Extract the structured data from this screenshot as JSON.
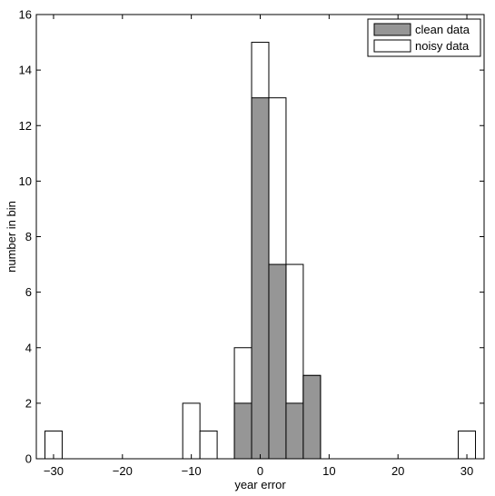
{
  "chart_data": {
    "type": "bar",
    "xlabel": "year error",
    "ylabel": "number in bin",
    "xlim": [
      -32.5,
      32.5
    ],
    "ylim": [
      0,
      16
    ],
    "bin_width": 2.5,
    "xticks": [
      -30,
      -20,
      -10,
      0,
      10,
      20,
      30
    ],
    "xtick_labels": [
      "−30",
      "−20",
      "−10",
      "0",
      "10",
      "20",
      "30"
    ],
    "yticks": [
      0,
      2,
      4,
      6,
      8,
      10,
      12,
      14,
      16
    ],
    "ytick_labels": [
      "0",
      "2",
      "4",
      "6",
      "8",
      "10",
      "12",
      "14",
      "16"
    ],
    "legend_position": "top-right",
    "series": [
      {
        "name": "clean data",
        "color": "#969696",
        "points": [
          {
            "x": -2.5,
            "y": 2
          },
          {
            "x": 0,
            "y": 13
          },
          {
            "x": 2.5,
            "y": 7
          },
          {
            "x": 5,
            "y": 2
          },
          {
            "x": 7.5,
            "y": 3
          }
        ]
      },
      {
        "name": "noisy data",
        "color": "#ffffff",
        "points": [
          {
            "x": -30,
            "y": 1
          },
          {
            "x": -10,
            "y": 2
          },
          {
            "x": -7.5,
            "y": 1
          },
          {
            "x": -2.5,
            "y": 4
          },
          {
            "x": 0,
            "y": 15
          },
          {
            "x": 2.5,
            "y": 13
          },
          {
            "x": 5,
            "y": 7
          },
          {
            "x": 7.5,
            "y": 3
          },
          {
            "x": 30,
            "y": 1
          }
        ]
      }
    ]
  }
}
